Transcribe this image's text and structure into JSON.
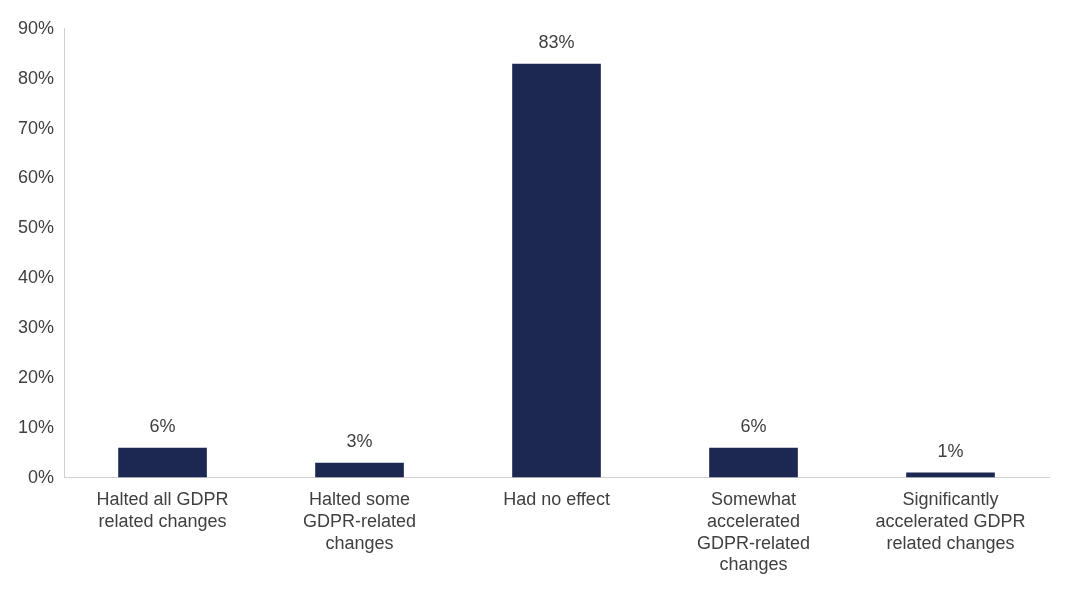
{
  "chart_data": {
    "type": "bar",
    "categories": [
      "Halted all GDPR related changes",
      "Halted some GDPR-related changes",
      "Had no effect",
      "Somewhat accelerated GDPR-related changes",
      "Significantly accelerated GDPR related changes"
    ],
    "values": [
      6,
      3,
      83,
      6,
      1
    ],
    "value_labels": [
      "6%",
      "3%",
      "83%",
      "6%",
      "1%"
    ],
    "color": "#1c2752",
    "ylim": [
      0,
      90
    ],
    "yticks": [
      {
        "value": 0,
        "label": "0%"
      },
      {
        "value": 10,
        "label": "10%"
      },
      {
        "value": 20,
        "label": "20%"
      },
      {
        "value": 30,
        "label": "30%"
      },
      {
        "value": 40,
        "label": "40%"
      },
      {
        "value": 50,
        "label": "50%"
      },
      {
        "value": 60,
        "label": "60%"
      },
      {
        "value": 70,
        "label": "70%"
      },
      {
        "value": 80,
        "label": "80%"
      },
      {
        "value": 90,
        "label": "90%"
      }
    ],
    "grid": false,
    "legend": false
  }
}
